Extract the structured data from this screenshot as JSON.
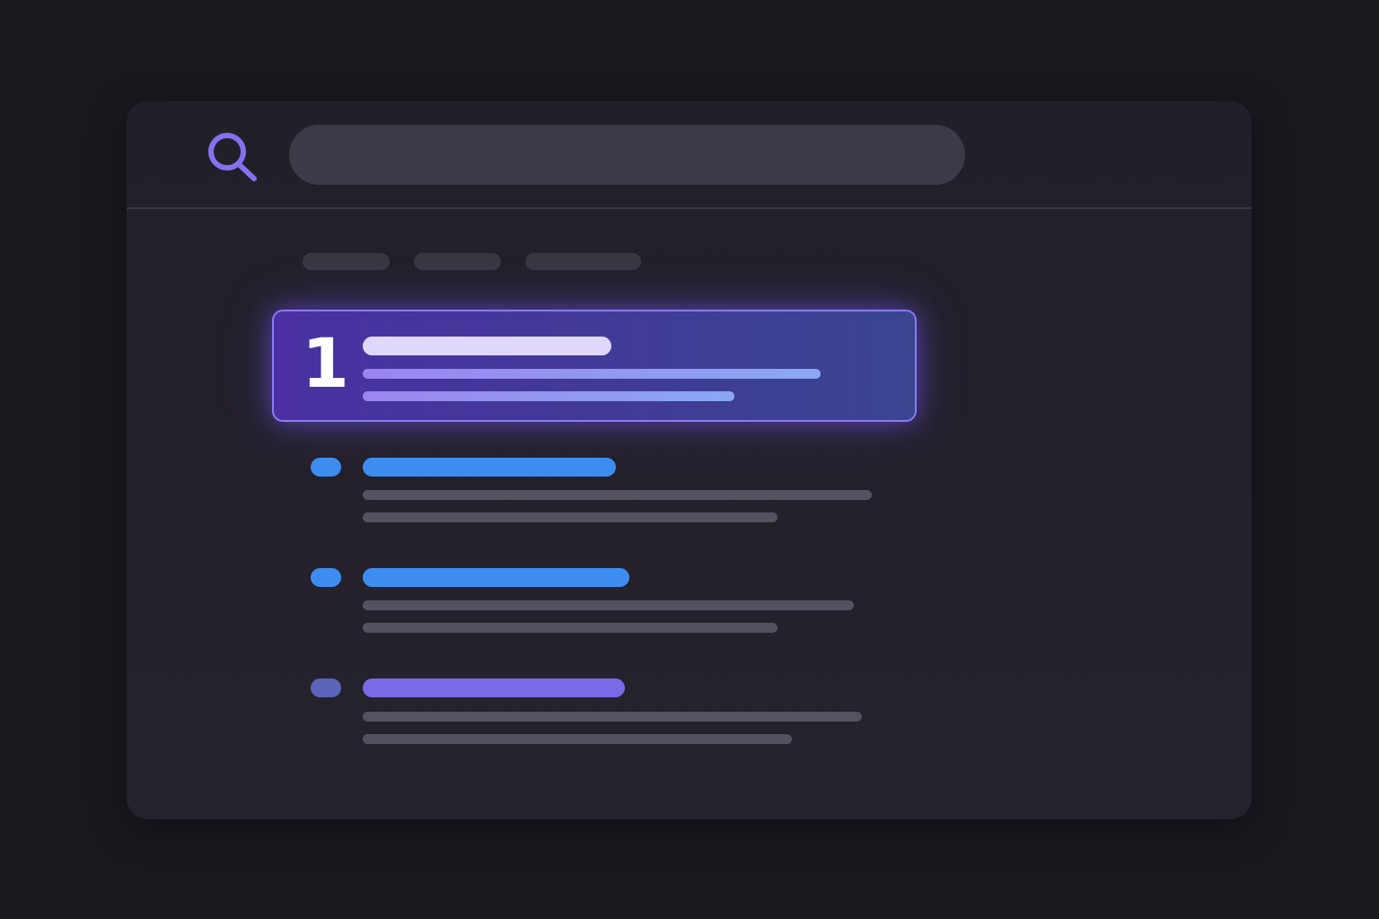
{
  "top_result": {
    "rank": "1",
    "border_color": "#8b7cf6",
    "title_color": "#e0d8fb",
    "snippet_colors": [
      "#9b85ee",
      "#8aa8f4"
    ]
  },
  "search": {
    "icon": "search-icon",
    "icon_color": "#8670f0",
    "query": ""
  },
  "results": [
    {
      "dot_color": "#3f8cf0",
      "title_color": "#3d8df0"
    },
    {
      "dot_color": "#3f8cf0",
      "title_color": "#3d8df0"
    },
    {
      "dot_color": "#5a64b8",
      "title_color": "#7a6ae6"
    }
  ]
}
